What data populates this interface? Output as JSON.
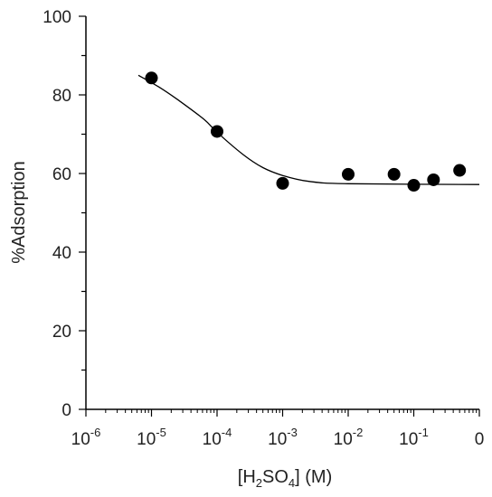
{
  "chart_data": {
    "type": "scatter",
    "xlabel": {
      "prefix": "[H",
      "sub1": "2",
      "mid": "SO",
      "sub2": "4",
      "suffix": "] (M)"
    },
    "ylabel": "%Adsorption",
    "xscale": "log",
    "xlim_exponents": [
      -6,
      0
    ],
    "ylim": [
      0,
      100
    ],
    "x_ticks": [
      {
        "base": "10",
        "exp": "-6"
      },
      {
        "base": "10",
        "exp": "-5"
      },
      {
        "base": "10",
        "exp": "-4"
      },
      {
        "base": "10",
        "exp": "-3"
      },
      {
        "base": "10",
        "exp": "-2"
      },
      {
        "base": "10",
        "exp": "-1"
      },
      {
        "base": "0",
        "exp": ""
      }
    ],
    "y_ticks": [
      "0",
      "20",
      "40",
      "60",
      "80",
      "100"
    ],
    "points": [
      {
        "x": 1e-05,
        "y": 84.3
      },
      {
        "x": 0.0001,
        "y": 70.7
      },
      {
        "x": 0.001,
        "y": 57.5
      },
      {
        "x": 0.01,
        "y": 59.8
      },
      {
        "x": 0.05,
        "y": 59.8
      },
      {
        "x": 0.1,
        "y": 57.0
      },
      {
        "x": 0.2,
        "y": 58.4
      },
      {
        "x": 0.5,
        "y": 60.8
      }
    ],
    "fit_curve": [
      {
        "x": 6.3e-06,
        "y": 85.0
      },
      {
        "x": 1.3e-05,
        "y": 82.0
      },
      {
        "x": 2.5e-05,
        "y": 78.8
      },
      {
        "x": 6.3e-05,
        "y": 73.8
      },
      {
        "x": 0.0001,
        "y": 70.5
      },
      {
        "x": 0.00025,
        "y": 64.8
      },
      {
        "x": 0.0005,
        "y": 61.5
      },
      {
        "x": 0.001,
        "y": 59.5
      },
      {
        "x": 0.0025,
        "y": 58.0
      },
      {
        "x": 0.01,
        "y": 57.4
      },
      {
        "x": 1.0,
        "y": 57.2
      }
    ],
    "colors": {
      "marker": "#000000",
      "line": "#000000",
      "axis": "#000000"
    },
    "grid": false
  }
}
